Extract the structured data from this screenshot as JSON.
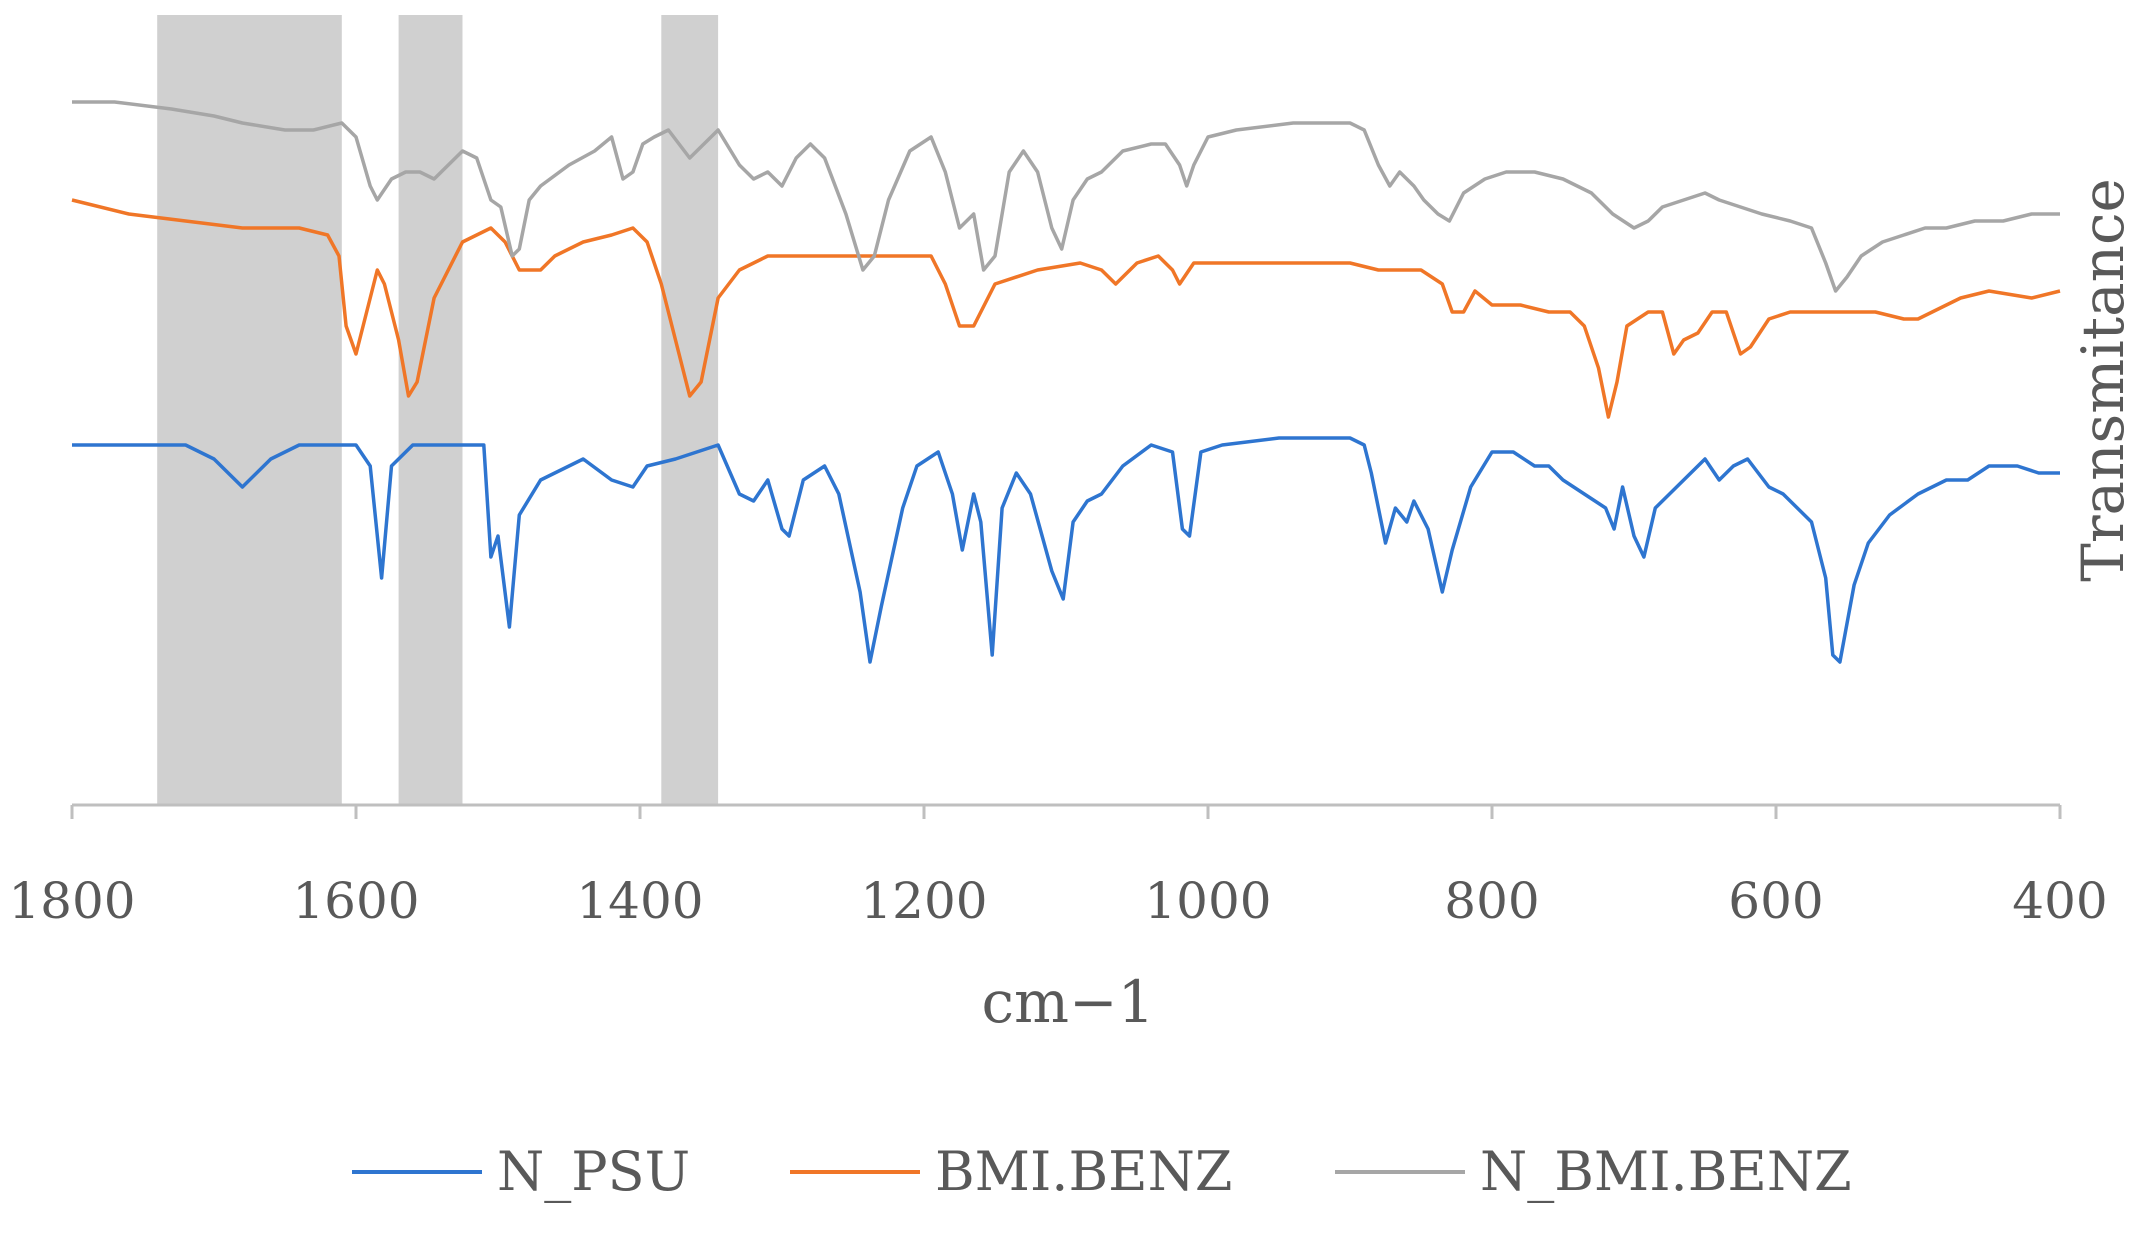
{
  "chart_data": {
    "type": "line",
    "xlabel": "cm−1",
    "ylabel": "Transmitance",
    "xlim": [
      1800,
      400
    ],
    "x_reversed": true,
    "x_ticks": [
      1800,
      1600,
      1400,
      1200,
      1000,
      800,
      600,
      400
    ],
    "y_ticks_shown": false,
    "ylim": [
      0,
      100
    ],
    "grid": false,
    "legend": "bottom",
    "highlight_bands": [
      [
        1740,
        1610
      ],
      [
        1570,
        1525
      ],
      [
        1385,
        1345
      ]
    ],
    "series": [
      {
        "name": "N_PSU",
        "color": "#2E75D0",
        "points": [
          [
            1800,
            45
          ],
          [
            1720,
            45
          ],
          [
            1700,
            43
          ],
          [
            1680,
            39
          ],
          [
            1660,
            43
          ],
          [
            1640,
            45
          ],
          [
            1600,
            45
          ],
          [
            1590,
            42
          ],
          [
            1582,
            26
          ],
          [
            1575,
            42
          ],
          [
            1560,
            45
          ],
          [
            1510,
            45
          ],
          [
            1505,
            29
          ],
          [
            1500,
            32
          ],
          [
            1492,
            19
          ],
          [
            1485,
            35
          ],
          [
            1470,
            40
          ],
          [
            1440,
            43
          ],
          [
            1420,
            40
          ],
          [
            1405,
            39
          ],
          [
            1395,
            42
          ],
          [
            1375,
            43
          ],
          [
            1360,
            44
          ],
          [
            1345,
            45
          ],
          [
            1330,
            38
          ],
          [
            1320,
            37
          ],
          [
            1310,
            40
          ],
          [
            1300,
            33
          ],
          [
            1295,
            32
          ],
          [
            1285,
            40
          ],
          [
            1270,
            42
          ],
          [
            1260,
            38
          ],
          [
            1245,
            24
          ],
          [
            1238,
            14
          ],
          [
            1230,
            22
          ],
          [
            1215,
            36
          ],
          [
            1205,
            42
          ],
          [
            1190,
            44
          ],
          [
            1180,
            38
          ],
          [
            1173,
            30
          ],
          [
            1165,
            38
          ],
          [
            1160,
            34
          ],
          [
            1152,
            15
          ],
          [
            1145,
            36
          ],
          [
            1135,
            41
          ],
          [
            1125,
            38
          ],
          [
            1110,
            27
          ],
          [
            1102,
            23
          ],
          [
            1095,
            34
          ],
          [
            1085,
            37
          ],
          [
            1075,
            38
          ],
          [
            1060,
            42
          ],
          [
            1040,
            45
          ],
          [
            1025,
            44
          ],
          [
            1018,
            33
          ],
          [
            1013,
            32
          ],
          [
            1005,
            44
          ],
          [
            990,
            45
          ],
          [
            950,
            46
          ],
          [
            900,
            46
          ],
          [
            890,
            45
          ],
          [
            885,
            41
          ],
          [
            875,
            31
          ],
          [
            868,
            36
          ],
          [
            860,
            34
          ],
          [
            855,
            37
          ],
          [
            845,
            33
          ],
          [
            835,
            24
          ],
          [
            828,
            30
          ],
          [
            815,
            39
          ],
          [
            800,
            44
          ],
          [
            785,
            44
          ],
          [
            770,
            42
          ],
          [
            760,
            42
          ],
          [
            750,
            40
          ],
          [
            735,
            38
          ],
          [
            720,
            36
          ],
          [
            714,
            33
          ],
          [
            708,
            39
          ],
          [
            700,
            32
          ],
          [
            693,
            29
          ],
          [
            685,
            36
          ],
          [
            675,
            38
          ],
          [
            660,
            41
          ],
          [
            650,
            43
          ],
          [
            640,
            40
          ],
          [
            630,
            42
          ],
          [
            620,
            43
          ],
          [
            605,
            39
          ],
          [
            595,
            38
          ],
          [
            585,
            36
          ],
          [
            575,
            34
          ],
          [
            565,
            26
          ],
          [
            560,
            15
          ],
          [
            555,
            14
          ],
          [
            545,
            25
          ],
          [
            535,
            31
          ],
          [
            520,
            35
          ],
          [
            500,
            38
          ],
          [
            480,
            40
          ],
          [
            465,
            40
          ],
          [
            450,
            42
          ],
          [
            430,
            42
          ],
          [
            415,
            41
          ],
          [
            400,
            41
          ]
        ]
      },
      {
        "name": "BMI.BENZ",
        "color": "#F07627",
        "points": [
          [
            1800,
            80
          ],
          [
            1760,
            78
          ],
          [
            1720,
            77
          ],
          [
            1680,
            76
          ],
          [
            1640,
            76
          ],
          [
            1620,
            75
          ],
          [
            1612,
            72
          ],
          [
            1607,
            62
          ],
          [
            1600,
            58
          ],
          [
            1590,
            66
          ],
          [
            1585,
            70
          ],
          [
            1580,
            68
          ],
          [
            1570,
            60
          ],
          [
            1563,
            52
          ],
          [
            1557,
            54
          ],
          [
            1545,
            66
          ],
          [
            1525,
            74
          ],
          [
            1505,
            76
          ],
          [
            1495,
            74
          ],
          [
            1485,
            70
          ],
          [
            1470,
            70
          ],
          [
            1460,
            72
          ],
          [
            1440,
            74
          ],
          [
            1420,
            75
          ],
          [
            1405,
            76
          ],
          [
            1395,
            74
          ],
          [
            1385,
            68
          ],
          [
            1375,
            60
          ],
          [
            1365,
            52
          ],
          [
            1357,
            54
          ],
          [
            1345,
            66
          ],
          [
            1330,
            70
          ],
          [
            1310,
            72
          ],
          [
            1280,
            72
          ],
          [
            1240,
            72
          ],
          [
            1210,
            72
          ],
          [
            1195,
            72
          ],
          [
            1185,
            68
          ],
          [
            1175,
            62
          ],
          [
            1165,
            62
          ],
          [
            1150,
            68
          ],
          [
            1120,
            70
          ],
          [
            1090,
            71
          ],
          [
            1075,
            70
          ],
          [
            1065,
            68
          ],
          [
            1050,
            71
          ],
          [
            1035,
            72
          ],
          [
            1025,
            70
          ],
          [
            1020,
            68
          ],
          [
            1010,
            71
          ],
          [
            980,
            71
          ],
          [
            940,
            71
          ],
          [
            900,
            71
          ],
          [
            880,
            70
          ],
          [
            850,
            70
          ],
          [
            835,
            68
          ],
          [
            828,
            64
          ],
          [
            820,
            64
          ],
          [
            812,
            67
          ],
          [
            800,
            65
          ],
          [
            780,
            65
          ],
          [
            760,
            64
          ],
          [
            745,
            64
          ],
          [
            735,
            62
          ],
          [
            725,
            56
          ],
          [
            718,
            49
          ],
          [
            712,
            54
          ],
          [
            705,
            62
          ],
          [
            690,
            64
          ],
          [
            680,
            64
          ],
          [
            672,
            58
          ],
          [
            665,
            60
          ],
          [
            655,
            61
          ],
          [
            645,
            64
          ],
          [
            635,
            64
          ],
          [
            625,
            58
          ],
          [
            618,
            59
          ],
          [
            605,
            63
          ],
          [
            590,
            64
          ],
          [
            560,
            64
          ],
          [
            530,
            64
          ],
          [
            510,
            63
          ],
          [
            500,
            63
          ],
          [
            490,
            64
          ],
          [
            470,
            66
          ],
          [
            450,
            67
          ],
          [
            420,
            66
          ],
          [
            400,
            67
          ]
        ]
      },
      {
        "name": "N_BMI.BENZ",
        "color": "#A6A6A6",
        "points": [
          [
            1800,
            94
          ],
          [
            1770,
            94
          ],
          [
            1730,
            93
          ],
          [
            1700,
            92
          ],
          [
            1680,
            91
          ],
          [
            1650,
            90
          ],
          [
            1630,
            90
          ],
          [
            1610,
            91
          ],
          [
            1600,
            89
          ],
          [
            1590,
            82
          ],
          [
            1585,
            80
          ],
          [
            1575,
            83
          ],
          [
            1565,
            84
          ],
          [
            1555,
            84
          ],
          [
            1545,
            83
          ],
          [
            1535,
            85
          ],
          [
            1525,
            87
          ],
          [
            1515,
            86
          ],
          [
            1505,
            80
          ],
          [
            1498,
            79
          ],
          [
            1490,
            72
          ],
          [
            1485,
            73
          ],
          [
            1478,
            80
          ],
          [
            1470,
            82
          ],
          [
            1450,
            85
          ],
          [
            1432,
            87
          ],
          [
            1420,
            89
          ],
          [
            1412,
            83
          ],
          [
            1405,
            84
          ],
          [
            1398,
            88
          ],
          [
            1390,
            89
          ],
          [
            1380,
            90
          ],
          [
            1365,
            86
          ],
          [
            1355,
            88
          ],
          [
            1345,
            90
          ],
          [
            1330,
            85
          ],
          [
            1320,
            83
          ],
          [
            1310,
            84
          ],
          [
            1300,
            82
          ],
          [
            1290,
            86
          ],
          [
            1280,
            88
          ],
          [
            1270,
            86
          ],
          [
            1255,
            78
          ],
          [
            1243,
            70
          ],
          [
            1235,
            72
          ],
          [
            1225,
            80
          ],
          [
            1210,
            87
          ],
          [
            1195,
            89
          ],
          [
            1185,
            84
          ],
          [
            1175,
            76
          ],
          [
            1165,
            78
          ],
          [
            1158,
            70
          ],
          [
            1150,
            72
          ],
          [
            1140,
            84
          ],
          [
            1130,
            87
          ],
          [
            1120,
            84
          ],
          [
            1110,
            76
          ],
          [
            1103,
            73
          ],
          [
            1095,
            80
          ],
          [
            1085,
            83
          ],
          [
            1075,
            84
          ],
          [
            1060,
            87
          ],
          [
            1040,
            88
          ],
          [
            1030,
            88
          ],
          [
            1020,
            85
          ],
          [
            1015,
            82
          ],
          [
            1010,
            85
          ],
          [
            1000,
            89
          ],
          [
            980,
            90
          ],
          [
            940,
            91
          ],
          [
            900,
            91
          ],
          [
            890,
            90
          ],
          [
            880,
            85
          ],
          [
            872,
            82
          ],
          [
            865,
            84
          ],
          [
            855,
            82
          ],
          [
            848,
            80
          ],
          [
            838,
            78
          ],
          [
            830,
            77
          ],
          [
            820,
            81
          ],
          [
            805,
            83
          ],
          [
            790,
            84
          ],
          [
            770,
            84
          ],
          [
            750,
            83
          ],
          [
            730,
            81
          ],
          [
            715,
            78
          ],
          [
            700,
            76
          ],
          [
            690,
            77
          ],
          [
            680,
            79
          ],
          [
            665,
            80
          ],
          [
            650,
            81
          ],
          [
            640,
            80
          ],
          [
            625,
            79
          ],
          [
            610,
            78
          ],
          [
            590,
            77
          ],
          [
            575,
            76
          ],
          [
            565,
            71
          ],
          [
            558,
            67
          ],
          [
            550,
            69
          ],
          [
            540,
            72
          ],
          [
            525,
            74
          ],
          [
            510,
            75
          ],
          [
            495,
            76
          ],
          [
            480,
            76
          ],
          [
            460,
            77
          ],
          [
            440,
            77
          ],
          [
            420,
            78
          ],
          [
            400,
            78
          ]
        ]
      }
    ]
  }
}
